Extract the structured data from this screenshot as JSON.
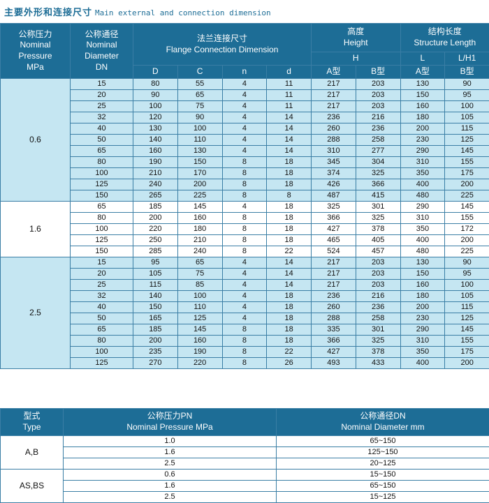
{
  "title": {
    "zh": "主要外形和连接尺寸",
    "en": "Main external and connection  dimension"
  },
  "colors": {
    "header_bg": "#1d6d96",
    "row_blue": "#c5e6f2",
    "row_white": "#ffffff",
    "border": "#3a7ea5",
    "title_text": "#1d6d96"
  },
  "main_table": {
    "headers": {
      "pressure": [
        "公称压力",
        "Nominal",
        "Pressure",
        "MPa"
      ],
      "diameter": [
        "公称通径",
        "Nominal",
        "Diameter",
        "DN"
      ],
      "flange": [
        "法兰连接尺寸",
        "Flange Connection Dimension"
      ],
      "height": [
        "高度",
        "Height"
      ],
      "structure": [
        "结构长度",
        "Structure Length"
      ],
      "h": "H",
      "l": "L",
      "lh1": "L/H1",
      "sub": [
        "D",
        "C",
        "n",
        "d",
        "A型",
        "B型",
        "A型",
        "B型"
      ]
    },
    "groups": [
      {
        "pressure": "0.6",
        "shade": "blue",
        "rows": [
          [
            "15",
            "80",
            "55",
            "4",
            "11",
            "217",
            "203",
            "130",
            "90"
          ],
          [
            "20",
            "90",
            "65",
            "4",
            "11",
            "217",
            "203",
            "150",
            "95"
          ],
          [
            "25",
            "100",
            "75",
            "4",
            "11",
            "217",
            "203",
            "160",
            "100"
          ],
          [
            "32",
            "120",
            "90",
            "4",
            "14",
            "236",
            "216",
            "180",
            "105"
          ],
          [
            "40",
            "130",
            "100",
            "4",
            "14",
            "260",
            "236",
            "200",
            "115"
          ],
          [
            "50",
            "140",
            "110",
            "4",
            "14",
            "288",
            "258",
            "230",
            "125"
          ],
          [
            "65",
            "160",
            "130",
            "4",
            "14",
            "310",
            "277",
            "290",
            "145"
          ],
          [
            "80",
            "190",
            "150",
            "8",
            "18",
            "345",
            "304",
            "310",
            "155"
          ],
          [
            "100",
            "210",
            "170",
            "8",
            "18",
            "374",
            "325",
            "350",
            "175"
          ],
          [
            "125",
            "240",
            "200",
            "8",
            "18",
            "426",
            "366",
            "400",
            "200"
          ],
          [
            "150",
            "265",
            "225",
            "8",
            "8",
            "487",
            "415",
            "480",
            "225"
          ]
        ]
      },
      {
        "pressure": "1.6",
        "shade": "white",
        "rows": [
          [
            "65",
            "185",
            "145",
            "4",
            "18",
            "325",
            "301",
            "290",
            "145"
          ],
          [
            "80",
            "200",
            "160",
            "8",
            "18",
            "366",
            "325",
            "310",
            "155"
          ],
          [
            "100",
            "220",
            "180",
            "8",
            "18",
            "427",
            "378",
            "350",
            "172"
          ],
          [
            "125",
            "250",
            "210",
            "8",
            "18",
            "465",
            "405",
            "400",
            "200"
          ],
          [
            "150",
            "285",
            "240",
            "8",
            "22",
            "524",
            "457",
            "480",
            "225"
          ]
        ]
      },
      {
        "pressure": "2.5",
        "shade": "blue",
        "rows": [
          [
            "15",
            "95",
            "65",
            "4",
            "14",
            "217",
            "203",
            "130",
            "90"
          ],
          [
            "20",
            "105",
            "75",
            "4",
            "14",
            "217",
            "203",
            "150",
            "95"
          ],
          [
            "25",
            "115",
            "85",
            "4",
            "14",
            "217",
            "203",
            "160",
            "100"
          ],
          [
            "32",
            "140",
            "100",
            "4",
            "18",
            "236",
            "216",
            "180",
            "105"
          ],
          [
            "40",
            "150",
            "110",
            "4",
            "18",
            "260",
            "236",
            "200",
            "115"
          ],
          [
            "50",
            "165",
            "125",
            "4",
            "18",
            "288",
            "258",
            "230",
            "125"
          ],
          [
            "65",
            "185",
            "145",
            "8",
            "18",
            "335",
            "301",
            "290",
            "145"
          ],
          [
            "80",
            "200",
            "160",
            "8",
            "18",
            "366",
            "325",
            "310",
            "155"
          ],
          [
            "100",
            "235",
            "190",
            "8",
            "22",
            "427",
            "378",
            "350",
            "175"
          ],
          [
            "125",
            "270",
            "220",
            "8",
            "26",
            "493",
            "433",
            "400",
            "200"
          ]
        ]
      }
    ]
  },
  "type_table": {
    "headers": {
      "type": [
        "型式",
        "Type"
      ],
      "pn": [
        "公称压力PN",
        "Nominal Pressure MPa"
      ],
      "dn": [
        "公称通径DN",
        "Nominal Diameter mm"
      ]
    },
    "groups": [
      {
        "type": "A,B",
        "rows": [
          [
            "1.0",
            "65~150"
          ],
          [
            "1.6",
            "125~150"
          ],
          [
            "2.5",
            "20~125"
          ]
        ]
      },
      {
        "type": "AS,BS",
        "rows": [
          [
            "0.6",
            "15~150"
          ],
          [
            "1.6",
            "65~150"
          ],
          [
            "2.5",
            "15~125"
          ]
        ]
      }
    ]
  }
}
